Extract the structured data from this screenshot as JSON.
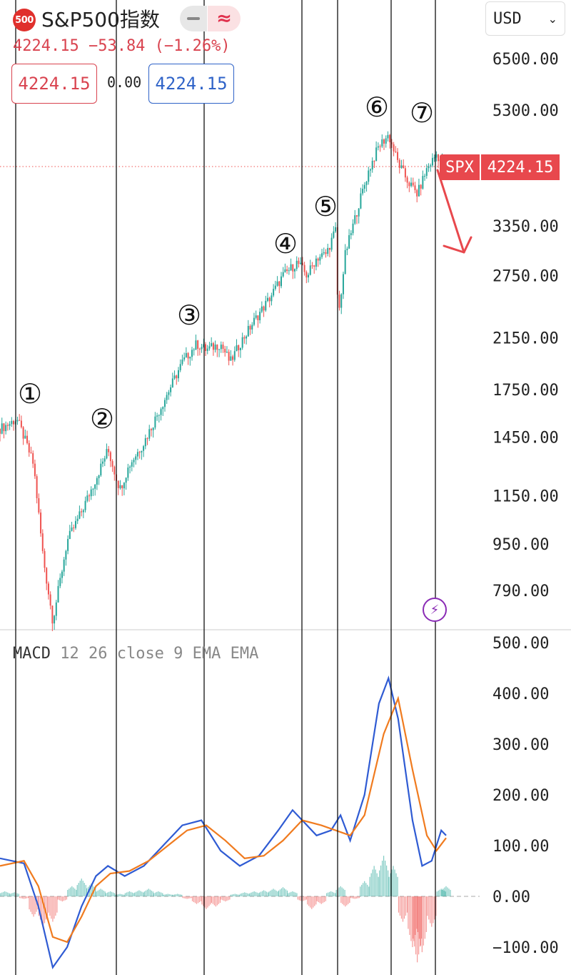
{
  "header": {
    "logo_text": "500",
    "title": "S&P500指数",
    "price_change": "4224.15 −53.84 (−1.26%)",
    "bid": "4224.15",
    "spread": "0.00",
    "ask": "4224.15",
    "currency": "USD"
  },
  "price_tag": {
    "symbol": "SPX",
    "value": "4224.15"
  },
  "macd_label": {
    "name": "MACD",
    "params": "12 26 close 9 EMA EMA"
  },
  "colors": {
    "up": "#26a69a",
    "down": "#ef5350",
    "macd": "#2f5bd3",
    "signal": "#f07b1f",
    "accent": "#e0302c",
    "arrow": "#e8484d"
  },
  "icons": {
    "logo": "sp500-logo-icon",
    "collapse": "minus-icon",
    "compare": "wave-icon",
    "dropdown": "chevron-down-icon",
    "alert": "lightning-icon"
  },
  "chart_data": [
    {
      "type": "candlestick",
      "scale": "log",
      "y_ticks": [
        6500,
        5300,
        3350,
        2750,
        2150,
        1750,
        1450,
        1150,
        950,
        790
      ],
      "y_tick_labels": [
        "6500.00",
        "5300.00",
        "3350.00",
        "2750.00",
        "2150.00",
        "1750.00",
        "1450.00",
        "1150.00",
        "950.00",
        "790.00"
      ],
      "last_price": 4224.15,
      "close_path": [
        [
          0,
          1500
        ],
        [
          0.02,
          1530
        ],
        [
          0.035,
          1560
        ],
        [
          0.05,
          1450
        ],
        [
          0.07,
          1300
        ],
        [
          0.09,
          900
        ],
        [
          0.11,
          700
        ],
        [
          0.14,
          960
        ],
        [
          0.17,
          1080
        ],
        [
          0.2,
          1230
        ],
        [
          0.225,
          1380
        ],
        [
          0.25,
          1180
        ],
        [
          0.27,
          1300
        ],
        [
          0.3,
          1420
        ],
        [
          0.33,
          1600
        ],
        [
          0.36,
          1800
        ],
        [
          0.38,
          1950
        ],
        [
          0.41,
          2100
        ],
        [
          0.43,
          2050
        ],
        [
          0.46,
          2100
        ],
        [
          0.48,
          1950
        ],
        [
          0.5,
          2100
        ],
        [
          0.53,
          2300
        ],
        [
          0.56,
          2500
        ],
        [
          0.59,
          2750
        ],
        [
          0.62,
          2900
        ],
        [
          0.64,
          2750
        ],
        [
          0.66,
          2950
        ],
        [
          0.68,
          3000
        ],
        [
          0.7,
          3300
        ],
        [
          0.705,
          2300
        ],
        [
          0.72,
          3000
        ],
        [
          0.75,
          3700
        ],
        [
          0.77,
          4200
        ],
        [
          0.79,
          4600
        ],
        [
          0.81,
          4800
        ],
        [
          0.83,
          4300
        ],
        [
          0.85,
          4000
        ],
        [
          0.87,
          3800
        ],
        [
          0.89,
          4200
        ],
        [
          0.91,
          4450
        ],
        [
          0.93,
          4224.15
        ]
      ],
      "wave_labels": [
        "①",
        "②",
        "③",
        "④",
        "⑤",
        "⑥",
        "⑦"
      ]
    },
    {
      "type": "line",
      "title": "MACD 12 26 close 9 EMA EMA",
      "y_ticks": [
        500,
        400,
        300,
        200,
        100,
        0,
        -100
      ],
      "y_tick_labels": [
        "500.00",
        "400.00",
        "300.00",
        "200.00",
        "100.00",
        "0.00",
        "−100.00"
      ],
      "series": [
        {
          "values": [
            [
              0,
              75
            ],
            [
              0.05,
              65
            ],
            [
              0.08,
              -20
            ],
            [
              0.11,
              -140
            ],
            [
              0.14,
              -100
            ],
            [
              0.17,
              -20
            ],
            [
              0.2,
              40
            ],
            [
              0.225,
              60
            ],
            [
              0.26,
              40
            ],
            [
              0.3,
              60
            ],
            [
              0.34,
              100
            ],
            [
              0.38,
              140
            ],
            [
              0.42,
              150
            ],
            [
              0.46,
              90
            ],
            [
              0.5,
              60
            ],
            [
              0.54,
              80
            ],
            [
              0.58,
              130
            ],
            [
              0.61,
              170
            ],
            [
              0.63,
              150
            ],
            [
              0.66,
              120
            ],
            [
              0.69,
              130
            ],
            [
              0.71,
              160
            ],
            [
              0.73,
              110
            ],
            [
              0.76,
              200
            ],
            [
              0.79,
              380
            ],
            [
              0.81,
              430
            ],
            [
              0.83,
              350
            ],
            [
              0.86,
              150
            ],
            [
              0.88,
              60
            ],
            [
              0.9,
              70
            ],
            [
              0.92,
              130
            ],
            [
              0.93,
              120
            ]
          ]
        },
        {
          "values": [
            [
              0,
              60
            ],
            [
              0.05,
              70
            ],
            [
              0.08,
              20
            ],
            [
              0.11,
              -80
            ],
            [
              0.14,
              -90
            ],
            [
              0.17,
              -40
            ],
            [
              0.2,
              20
            ],
            [
              0.23,
              45
            ],
            [
              0.27,
              50
            ],
            [
              0.31,
              70
            ],
            [
              0.35,
              100
            ],
            [
              0.39,
              130
            ],
            [
              0.43,
              140
            ],
            [
              0.47,
              110
            ],
            [
              0.51,
              75
            ],
            [
              0.55,
              80
            ],
            [
              0.59,
              110
            ],
            [
              0.63,
              150
            ],
            [
              0.67,
              140
            ],
            [
              0.7,
              130
            ],
            [
              0.73,
              120
            ],
            [
              0.76,
              160
            ],
            [
              0.8,
              320
            ],
            [
              0.83,
              390
            ],
            [
              0.86,
              250
            ],
            [
              0.89,
              120
            ],
            [
              0.91,
              90
            ],
            [
              0.93,
              115
            ]
          ]
        }
      ],
      "histogram": [
        [
          0.01,
          10
        ],
        [
          0.03,
          8
        ],
        [
          0.05,
          -5
        ],
        [
          0.07,
          -40
        ],
        [
          0.09,
          -60
        ],
        [
          0.11,
          -50
        ],
        [
          0.13,
          -10
        ],
        [
          0.15,
          20
        ],
        [
          0.17,
          35
        ],
        [
          0.19,
          25
        ],
        [
          0.21,
          15
        ],
        [
          0.23,
          10
        ],
        [
          0.25,
          5
        ],
        [
          0.27,
          10
        ],
        [
          0.29,
          12
        ],
        [
          0.31,
          15
        ],
        [
          0.33,
          10
        ],
        [
          0.35,
          5
        ],
        [
          0.37,
          5
        ],
        [
          0.39,
          -5
        ],
        [
          0.41,
          -15
        ],
        [
          0.43,
          -25
        ],
        [
          0.45,
          -20
        ],
        [
          0.47,
          -10
        ],
        [
          0.49,
          5
        ],
        [
          0.51,
          8
        ],
        [
          0.53,
          10
        ],
        [
          0.55,
          12
        ],
        [
          0.57,
          15
        ],
        [
          0.59,
          18
        ],
        [
          0.61,
          10
        ],
        [
          0.63,
          -10
        ],
        [
          0.65,
          -25
        ],
        [
          0.67,
          -15
        ],
        [
          0.69,
          10
        ],
        [
          0.71,
          20
        ],
        [
          0.72,
          -20
        ],
        [
          0.74,
          -5
        ],
        [
          0.76,
          30
        ],
        [
          0.78,
          60
        ],
        [
          0.8,
          80
        ],
        [
          0.82,
          60
        ],
        [
          0.84,
          -50
        ],
        [
          0.86,
          -100
        ],
        [
          0.87,
          -130
        ],
        [
          0.88,
          -110
        ],
        [
          0.9,
          -60
        ],
        [
          0.92,
          15
        ],
        [
          0.93,
          20
        ]
      ]
    }
  ]
}
